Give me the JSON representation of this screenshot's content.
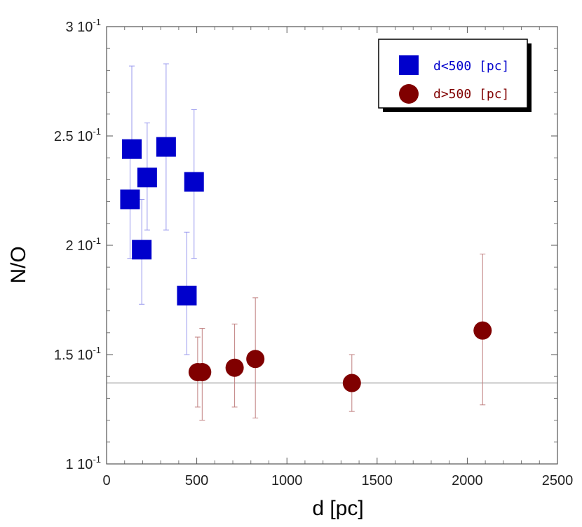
{
  "chart_data": {
    "type": "scatter",
    "title": "",
    "xlabel": "d [pc]",
    "ylabel": "N/O",
    "xlim": [
      0,
      2500
    ],
    "ylim": [
      0.1,
      0.3
    ],
    "x_ticks": [
      0,
      500,
      1000,
      1500,
      2000,
      2500
    ],
    "x_tick_labels": [
      "0",
      "500",
      "1000",
      "1500",
      "2000",
      "2500"
    ],
    "y_ticks": [
      0.1,
      0.15,
      0.2,
      0.25,
      0.3
    ],
    "y_tick_labels": [
      {
        "mant": "1",
        "base": "10",
        "exp": "-1"
      },
      {
        "mant": "1.5",
        "base": "10",
        "exp": "-1"
      },
      {
        "mant": "2",
        "base": "10",
        "exp": "-1"
      },
      {
        "mant": "2.5",
        "base": "10",
        "exp": "-1"
      },
      {
        "mant": "3",
        "base": "10",
        "exp": "-1"
      }
    ],
    "reference_line_y": 0.137,
    "legend_position": "top-right",
    "series": [
      {
        "name": "d<500 [pc]",
        "marker": "square",
        "color": "#0000cc",
        "error_color": "#9999ee",
        "points": [
          {
            "x": 140,
            "y": 0.244,
            "err_low": 0.244,
            "err_high": 0.282
          },
          {
            "x": 130,
            "y": 0.221,
            "err_low": 0.194,
            "err_high": 0.244
          },
          {
            "x": 195,
            "y": 0.198,
            "err_low": 0.173,
            "err_high": 0.221
          },
          {
            "x": 225,
            "y": 0.231,
            "err_low": 0.207,
            "err_high": 0.256
          },
          {
            "x": 330,
            "y": 0.245,
            "err_low": 0.207,
            "err_high": 0.283
          },
          {
            "x": 445,
            "y": 0.177,
            "err_low": 0.15,
            "err_high": 0.206
          },
          {
            "x": 485,
            "y": 0.229,
            "err_low": 0.194,
            "err_high": 0.262
          }
        ]
      },
      {
        "name": "d>500 [pc]",
        "marker": "circle",
        "color": "#800000",
        "error_color": "#c08080",
        "points": [
          {
            "x": 505,
            "y": 0.142,
            "err_low": 0.126,
            "err_high": 0.158
          },
          {
            "x": 530,
            "y": 0.142,
            "err_low": 0.12,
            "err_high": 0.162
          },
          {
            "x": 710,
            "y": 0.144,
            "err_low": 0.126,
            "err_high": 0.164
          },
          {
            "x": 825,
            "y": 0.148,
            "err_low": 0.121,
            "err_high": 0.176
          },
          {
            "x": 1360,
            "y": 0.137,
            "err_low": 0.124,
            "err_high": 0.15
          },
          {
            "x": 2085,
            "y": 0.161,
            "err_low": 0.127,
            "err_high": 0.196
          }
        ]
      }
    ]
  }
}
